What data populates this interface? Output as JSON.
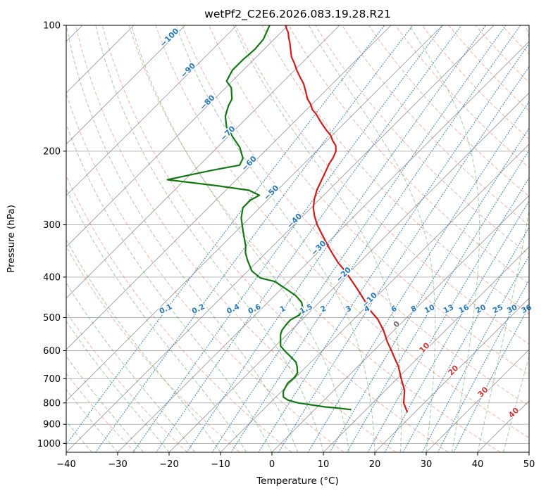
{
  "chart_data": {
    "type": "line",
    "chart_style": "skew-T log-P atmospheric sounding",
    "title": "wetPf2_C2E6.2026.083.19.28.R21",
    "xlabel": "Temperature (°C)",
    "ylabel": "Pressure (hPa)",
    "x_range": [
      -40,
      50
    ],
    "pressure_range": [
      100,
      1050
    ],
    "skew": "45deg",
    "x_ticks": [
      -40,
      -30,
      -20,
      -10,
      0,
      10,
      20,
      30,
      40,
      50
    ],
    "y_ticks": [
      100,
      200,
      300,
      400,
      500,
      600,
      700,
      800,
      900,
      1000
    ],
    "grid": true,
    "isotherm_lines_c": {
      "start": -160,
      "end": 50,
      "step": 10
    },
    "isotherm_labels_c": [
      -100,
      -90,
      -80,
      -70,
      -60,
      -50,
      -40,
      -30,
      -20,
      -10,
      0,
      10,
      20,
      30,
      40
    ],
    "dry_adiabats_theta_c": {
      "start": -30,
      "end": 200,
      "step": 10
    },
    "moist_adiabats_start_c": {
      "start": -40,
      "end": 50,
      "step": 5
    },
    "mixing_ratio_g_kg": [
      0.1,
      0.2,
      0.4,
      0.6,
      1,
      1.5,
      2,
      3,
      4,
      6,
      8,
      10,
      13,
      16,
      20,
      25,
      30,
      36
    ],
    "mixing_label_pressure_hpa": 477,
    "series": [
      {
        "name": "temperature",
        "color": "#d21c1c",
        "points": [
          [
            840,
            18.4
          ],
          [
            800,
            16.0
          ],
          [
            746,
            13.7
          ],
          [
            700,
            10.8
          ],
          [
            652,
            7.7
          ],
          [
            625,
            5.5
          ],
          [
            603,
            3.7
          ],
          [
            570,
            0.8
          ],
          [
            537,
            -2.0
          ],
          [
            505,
            -5.3
          ],
          [
            478,
            -8.9
          ],
          [
            458,
            -11.2
          ],
          [
            440,
            -13.5
          ],
          [
            420,
            -16.2
          ],
          [
            402,
            -18.8
          ],
          [
            385,
            -21.4
          ],
          [
            370,
            -24.0
          ],
          [
            353,
            -26.7
          ],
          [
            337,
            -29.3
          ],
          [
            318,
            -32.4
          ],
          [
            300,
            -35.5
          ],
          [
            286,
            -37.7
          ],
          [
            273,
            -39.6
          ],
          [
            260,
            -41.1
          ],
          [
            248,
            -42.3
          ],
          [
            239,
            -43.0
          ],
          [
            229,
            -43.8
          ],
          [
            215,
            -45.0
          ],
          [
            207,
            -45.5
          ],
          [
            200,
            -46.2
          ],
          [
            194,
            -47.3
          ],
          [
            189,
            -48.8
          ],
          [
            183,
            -50.4
          ],
          [
            178,
            -52.2
          ],
          [
            173,
            -53.9
          ],
          [
            168,
            -55.6
          ],
          [
            163,
            -57.3
          ],
          [
            159,
            -58.9
          ],
          [
            154,
            -60.4
          ],
          [
            150,
            -61.9
          ],
          [
            144,
            -63.7
          ],
          [
            138,
            -65.6
          ],
          [
            133,
            -67.6
          ],
          [
            128,
            -69.6
          ],
          [
            123,
            -71.5
          ],
          [
            119,
            -73.2
          ],
          [
            114,
            -74.9
          ],
          [
            110,
            -76.3
          ],
          [
            107,
            -77.5
          ],
          [
            104,
            -78.6
          ],
          [
            102,
            -79.6
          ],
          [
            100,
            -80.5
          ]
        ]
      },
      {
        "name": "dewpoint",
        "color": "#137713",
        "points": [
          [
            830,
            7.0
          ],
          [
            824,
            4.5
          ],
          [
            818,
            1.5
          ],
          [
            800,
            -4.5
          ],
          [
            788,
            -7.0
          ],
          [
            775,
            -8.5
          ],
          [
            752,
            -9.6
          ],
          [
            718,
            -10.4
          ],
          [
            695,
            -10.2
          ],
          [
            678,
            -10.5
          ],
          [
            655,
            -11.8
          ],
          [
            639,
            -12.9
          ],
          [
            620,
            -15.0
          ],
          [
            603,
            -17.0
          ],
          [
            585,
            -19.0
          ],
          [
            569,
            -20.0
          ],
          [
            550,
            -21.2
          ],
          [
            537,
            -21.8
          ],
          [
            520,
            -22.1
          ],
          [
            507,
            -22.2
          ],
          [
            493,
            -21.4
          ],
          [
            478,
            -21.8
          ],
          [
            460,
            -23.4
          ],
          [
            443,
            -25.9
          ],
          [
            426,
            -29.3
          ],
          [
            410,
            -32.7
          ],
          [
            402,
            -36.2
          ],
          [
            387,
            -39.2
          ],
          [
            365,
            -42.1
          ],
          [
            350,
            -44.0
          ],
          [
            337,
            -45.3
          ],
          [
            312,
            -48.5
          ],
          [
            289,
            -51.6
          ],
          [
            273,
            -53.3
          ],
          [
            262,
            -53.3
          ],
          [
            255,
            -52.5
          ],
          [
            248,
            -55.5
          ],
          [
            242,
            -62.5
          ],
          [
            234,
            -73.4
          ],
          [
            228,
            -70.0
          ],
          [
            222,
            -66.5
          ],
          [
            216,
            -62.2
          ],
          [
            208,
            -62.9
          ],
          [
            196,
            -65.6
          ],
          [
            185,
            -69.0
          ],
          [
            175,
            -72.2
          ],
          [
            165,
            -74.5
          ],
          [
            156,
            -75.9
          ],
          [
            150,
            -76.6
          ],
          [
            141,
            -78.9
          ],
          [
            136,
            -81.1
          ],
          [
            128,
            -82.1
          ],
          [
            121,
            -82.1
          ],
          [
            114,
            -81.8
          ],
          [
            108,
            -82.1
          ],
          [
            100,
            -83.6
          ]
        ]
      }
    ]
  },
  "colors": {
    "pressure_grid": "#b0b0b0",
    "isotherm": "#989898",
    "dry_adiabat": "rgba(217,95,74,0.42)",
    "moist_adiabat": "rgba(50,140,50,0.40)",
    "mixing_ratio": "rgba(45,114,178,0.80)",
    "isotherm_label_neg": "#2878b8",
    "isotherm_label_pos": "#c83c3c",
    "isotherm_label_zero": "#6e6e6e",
    "mixing_label": "#2878b8",
    "axis": "#000000"
  }
}
